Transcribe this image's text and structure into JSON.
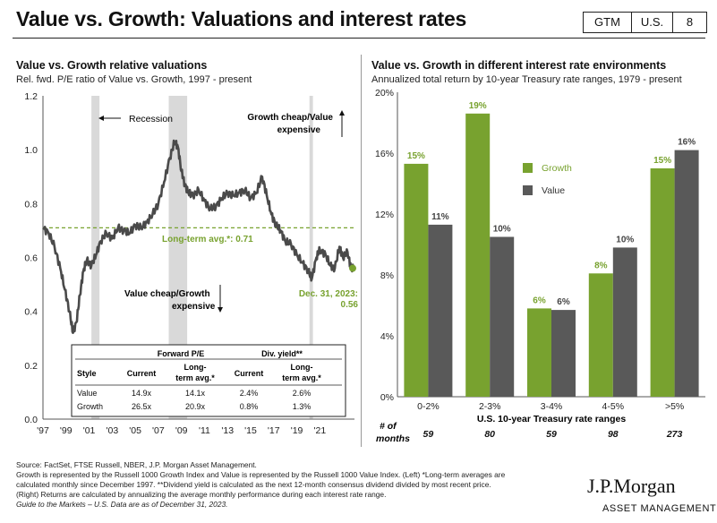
{
  "header": {
    "title": "Value vs. Growth: Valuations and interest rates",
    "badges": [
      "GTM",
      "U.S.",
      "8"
    ]
  },
  "colors": {
    "growth": "#78A22F",
    "value": "#595959",
    "line": "#4A4A4A",
    "recession": "#D9D9D9",
    "avg": "#78A22F"
  },
  "left_panel": {
    "title": "Value vs. Growth relative valuations",
    "subtitle": "Rel. fwd. P/E ratio of Value vs. Growth, 1997 - present"
  },
  "right_panel": {
    "title": "Value vs. Growth in different interest rate environments",
    "subtitle": "Annualized total return by 10-year Treasury rate ranges, 1979 - present"
  },
  "chart_data": [
    {
      "type": "line",
      "title": "Value vs. Growth relative valuations",
      "subtitle": "Rel. fwd. P/E ratio of Value vs. Growth, 1997 - present",
      "x_ticks": [
        "'97",
        "'99",
        "'01",
        "'03",
        "'05",
        "'07",
        "'09",
        "'11",
        "'13",
        "'15",
        "'17",
        "'19",
        "'21"
      ],
      "y_ticks": [
        "0.0",
        "0.2",
        "0.4",
        "0.6",
        "0.8",
        "1.0",
        "1.2"
      ],
      "xlim": [
        1997,
        2024
      ],
      "ylim": [
        0,
        1.2
      ],
      "recessions": [
        [
          2001.2,
          2001.9
        ],
        [
          2007.9,
          2009.5
        ],
        [
          2020.1,
          2020.4
        ]
      ],
      "series": {
        "name": "Rel. fwd. P/E",
        "x": [
          1997.0,
          1997.5,
          1998.0,
          1998.5,
          1998.9,
          1999.3,
          1999.6,
          1999.9,
          2000.2,
          2000.5,
          2000.8,
          2001.2,
          2001.6,
          2002.0,
          2002.5,
          2003.0,
          2003.5,
          2004.0,
          2004.5,
          2005.0,
          2005.5,
          2006.0,
          2006.5,
          2007.0,
          2007.5,
          2008.0,
          2008.4,
          2008.7,
          2009.0,
          2009.3,
          2009.6,
          2010.0,
          2010.5,
          2011.0,
          2011.5,
          2012.0,
          2012.5,
          2013.0,
          2013.5,
          2014.0,
          2014.5,
          2015.0,
          2015.5,
          2016.0,
          2016.4,
          2016.8,
          2017.2,
          2017.6,
          2018.0,
          2018.5,
          2019.0,
          2019.5,
          2020.0,
          2020.3,
          2020.7,
          2021.0,
          2021.5,
          2021.9,
          2022.3,
          2022.7,
          2023.0,
          2023.4,
          2023.7,
          2024.0
        ],
        "y": [
          0.71,
          0.69,
          0.64,
          0.56,
          0.48,
          0.4,
          0.32,
          0.36,
          0.46,
          0.55,
          0.59,
          0.57,
          0.61,
          0.66,
          0.69,
          0.67,
          0.71,
          0.7,
          0.69,
          0.72,
          0.71,
          0.73,
          0.76,
          0.8,
          0.88,
          0.97,
          1.03,
          1.01,
          0.92,
          0.87,
          0.84,
          0.83,
          0.85,
          0.81,
          0.78,
          0.79,
          0.82,
          0.84,
          0.83,
          0.84,
          0.85,
          0.82,
          0.84,
          0.9,
          0.83,
          0.76,
          0.72,
          0.7,
          0.66,
          0.65,
          0.61,
          0.58,
          0.55,
          0.52,
          0.6,
          0.63,
          0.61,
          0.57,
          0.56,
          0.64,
          0.6,
          0.62,
          0.56,
          0.56
        ]
      },
      "long_term_avg": {
        "value": 0.71,
        "label": "Long-term avg.*:  0.71"
      },
      "endpoint": {
        "value": 0.56,
        "label_date": "Dec. 31, 2023:",
        "label_value": "0.56"
      },
      "annotations": {
        "recession": "Recession",
        "growth_cheap_1": "Growth cheap/Value",
        "growth_cheap_2": "expensive",
        "value_cheap_1": "Value cheap/Growth",
        "value_cheap_2": "expensive"
      },
      "table": {
        "group_headers": [
          "Forward P/E",
          "Div. yield**"
        ],
        "columns": [
          "Style",
          "Current",
          "Long-term avg.*",
          "Current",
          "Long-term avg.*"
        ],
        "col_line1": [
          "Style",
          "Current",
          "Long-",
          "Current",
          "Long-"
        ],
        "col_line2": [
          "",
          "",
          "term avg.*",
          "",
          "term avg.*"
        ],
        "rows": [
          [
            "Value",
            "14.9x",
            "14.1x",
            "2.4%",
            "2.6%"
          ],
          [
            "Growth",
            "26.5x",
            "20.9x",
            "0.8%",
            "1.3%"
          ]
        ]
      }
    },
    {
      "type": "bar",
      "title": "Value vs. Growth in different interest rate environments",
      "subtitle": "Annualized total return by 10-year Treasury rate ranges, 1979 - present",
      "categories": [
        "0-2%",
        "2-3%",
        "3-4%",
        "4-5%",
        ">5%"
      ],
      "series": [
        {
          "name": "Growth",
          "values": [
            15.3,
            18.6,
            5.8,
            8.1,
            15.0
          ],
          "labels": [
            "15%",
            "19%",
            "6%",
            "8%",
            "15%"
          ]
        },
        {
          "name": "Value",
          "values": [
            11.3,
            10.5,
            5.7,
            9.8,
            16.2
          ],
          "labels": [
            "11%",
            "10%",
            "6%",
            "10%",
            "16%"
          ]
        }
      ],
      "ylim": [
        0,
        20
      ],
      "y_ticks": [
        "0%",
        "4%",
        "8%",
        "12%",
        "16%",
        "20%"
      ],
      "xlabel": "U.S. 10-year Treasury rate ranges",
      "months_label": [
        "# of",
        "months"
      ],
      "months": [
        "59",
        "80",
        "59",
        "98",
        "273"
      ]
    }
  ],
  "footer": {
    "lines": [
      "Source: FactSet, FTSE Russell, NBER, J.P. Morgan Asset Management.",
      "Growth is represented by the Russell 1000 Growth Index and Value is represented by the Russell 1000 Value Index. (Left) *Long-term averages are",
      "calculated monthly since December 1997. **Dividend yield is calculated as the next 12-month consensus dividend divided by most recent price.",
      "(Right) Returns are calculated by annualizing the average monthly performance during each interest rate range."
    ],
    "italic_line": "Guide to the Markets – U.S. Data are as of December 31, 2023."
  },
  "brand": {
    "name": "J.P.Morgan",
    "sub": "ASSET MANAGEMENT"
  }
}
